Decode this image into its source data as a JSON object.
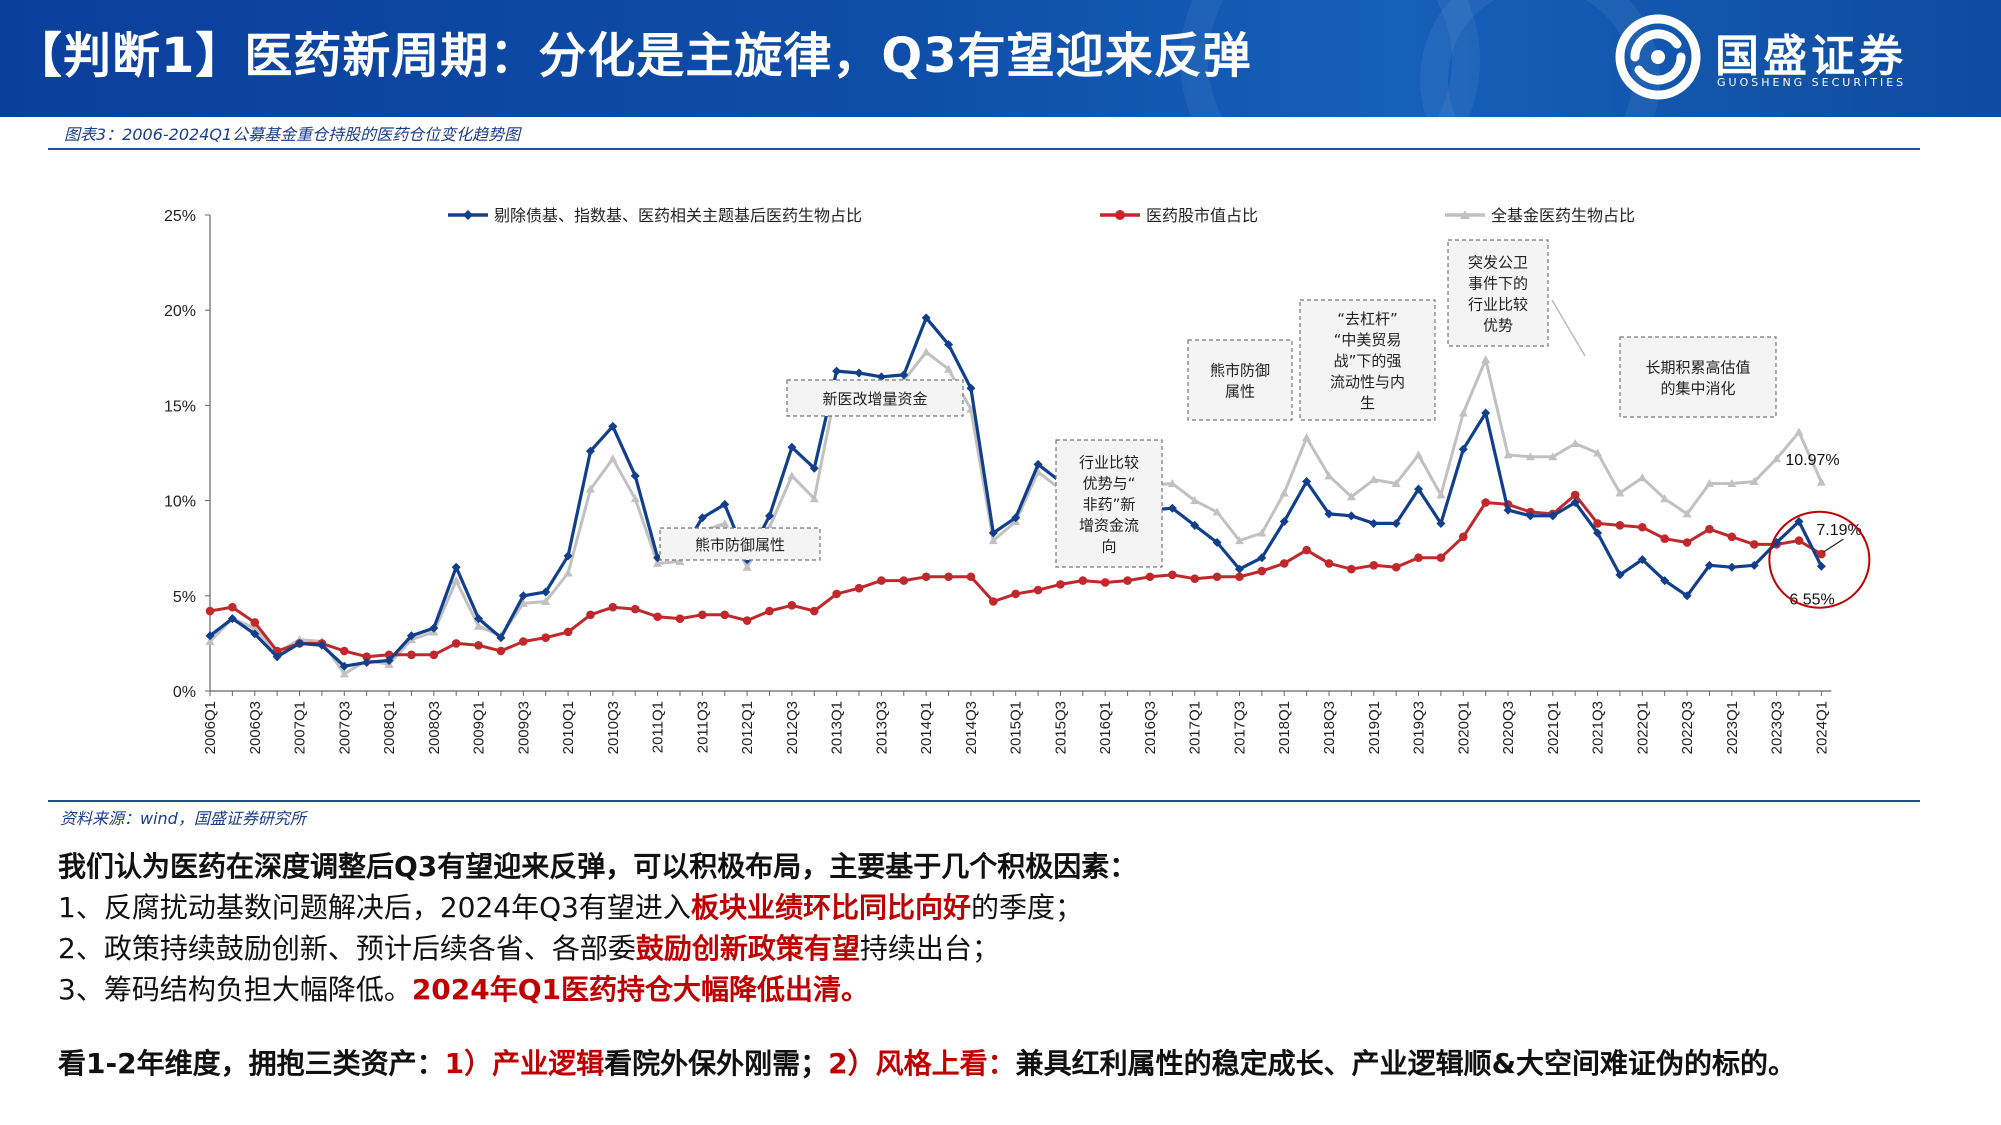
{
  "header": {
    "title": "【判断1】医药新周期：分化是主旋律，Q3有望迎来反弹",
    "logo_name": "国盛证券",
    "logo_sub": "GUOSHENG SECURITIES"
  },
  "figure": {
    "caption": "图表3：2006-2024Q1公募基金重仓持股的医药仓位变化趋势图",
    "source": "资料来源：wind，国盛证券研究所"
  },
  "chart_data": {
    "type": "line",
    "categories": [
      "2006Q1",
      "2006Q2",
      "2006Q3",
      "2006Q4",
      "2007Q1",
      "2007Q2",
      "2007Q3",
      "2007Q4",
      "2008Q1",
      "2008Q2",
      "2008Q3",
      "2008Q4",
      "2009Q1",
      "2009Q2",
      "2009Q3",
      "2009Q4",
      "2010Q1",
      "2010Q2",
      "2010Q3",
      "2010Q4",
      "2011Q1",
      "2011Q2",
      "2011Q3",
      "2011Q4",
      "2012Q1",
      "2012Q2",
      "2012Q3",
      "2012Q4",
      "2013Q1",
      "2013Q2",
      "2013Q3",
      "2013Q4",
      "2014Q1",
      "2014Q2",
      "2014Q3",
      "2014Q4",
      "2015Q1",
      "2015Q2",
      "2015Q3",
      "2015Q4",
      "2016Q1",
      "2016Q2",
      "2016Q3",
      "2016Q4",
      "2017Q1",
      "2017Q2",
      "2017Q3",
      "2017Q4",
      "2018Q1",
      "2018Q2",
      "2018Q3",
      "2018Q4",
      "2019Q1",
      "2019Q2",
      "2019Q3",
      "2019Q4",
      "2020Q1",
      "2020Q2",
      "2020Q3",
      "2020Q4",
      "2021Q1",
      "2021Q2",
      "2021Q3",
      "2021Q4",
      "2022Q1",
      "2022Q2",
      "2022Q3",
      "2022Q4",
      "2023Q1",
      "2023Q2",
      "2023Q3",
      "2023Q4",
      "2024Q1"
    ],
    "tick_labels": [
      "2006Q1",
      "2006Q3",
      "2007Q1",
      "2007Q3",
      "2008Q1",
      "2008Q3",
      "2009Q1",
      "2009Q3",
      "2010Q1",
      "2010Q3",
      "2011Q1",
      "2011Q3",
      "2012Q1",
      "2012Q3",
      "2013Q1",
      "2013Q3",
      "2014Q1",
      "2014Q3",
      "2015Q1",
      "2015Q3",
      "2016Q1",
      "2016Q3",
      "2017Q1",
      "2017Q3",
      "2018Q1",
      "2018Q3",
      "2019Q1",
      "2019Q3",
      "2020Q1",
      "2020Q3",
      "2021Q1",
      "2021Q3",
      "2022Q1",
      "2022Q3",
      "2023Q1",
      "2023Q3",
      "2024Q1"
    ],
    "y_ticks": [
      "0%",
      "5%",
      "10%",
      "15%",
      "20%",
      "25%"
    ],
    "ylim": [
      0,
      25
    ],
    "legend_position": "top",
    "series": [
      {
        "name": "剔除债基、指数基、医药相关主题基后医药生物占比",
        "color": "#123f8c",
        "marker": "diamond",
        "values": [
          2.9,
          3.8,
          3.0,
          1.8,
          2.5,
          2.4,
          1.3,
          1.5,
          1.6,
          2.9,
          3.3,
          6.5,
          3.8,
          2.8,
          5.0,
          5.2,
          7.1,
          12.6,
          13.9,
          11.3,
          7.0,
          7.2,
          9.1,
          9.8,
          6.9,
          9.2,
          12.8,
          11.7,
          16.8,
          16.7,
          16.5,
          16.6,
          19.6,
          18.2,
          15.9,
          8.3,
          9.1,
          11.9,
          11.0,
          10.2,
          9.9,
          9.5,
          9.5,
          9.6,
          8.7,
          7.8,
          6.4,
          7.0,
          8.9,
          11.0,
          9.3,
          9.2,
          8.8,
          8.8,
          10.6,
          8.8,
          12.7,
          14.6,
          9.5,
          9.2,
          9.2,
          9.9,
          8.3,
          6.1,
          6.9,
          5.8,
          5.0,
          6.6,
          6.5,
          6.6,
          7.8,
          8.9,
          6.55
        ]
      },
      {
        "name": "医药股市值占比",
        "color": "#c0282c",
        "marker": "circle",
        "values": [
          4.2,
          4.4,
          3.6,
          2.1,
          2.5,
          2.5,
          2.1,
          1.8,
          1.9,
          1.9,
          1.9,
          2.5,
          2.4,
          2.1,
          2.6,
          2.8,
          3.1,
          4.0,
          4.4,
          4.3,
          3.9,
          3.8,
          4.0,
          4.0,
          3.7,
          4.2,
          4.5,
          4.2,
          5.1,
          5.4,
          5.8,
          5.8,
          6.0,
          6.0,
          6.0,
          4.7,
          5.1,
          5.3,
          5.6,
          5.8,
          5.7,
          5.8,
          6.0,
          6.1,
          5.9,
          6.0,
          6.0,
          6.3,
          6.7,
          7.4,
          6.7,
          6.4,
          6.6,
          6.5,
          7.0,
          7.0,
          8.1,
          9.9,
          9.8,
          9.4,
          9.3,
          10.3,
          8.8,
          8.7,
          8.6,
          8.0,
          7.8,
          8.5,
          8.1,
          7.7,
          7.7,
          7.9,
          7.19
        ]
      },
      {
        "name": "全基金医药生物占比",
        "color": "#c1c1c1",
        "marker": "triangle",
        "values": [
          2.6,
          3.8,
          3.3,
          2.0,
          2.7,
          2.6,
          0.9,
          1.6,
          1.4,
          2.7,
          3.1,
          5.8,
          3.4,
          2.9,
          4.6,
          4.7,
          6.2,
          10.6,
          12.2,
          10.1,
          6.7,
          6.8,
          8.4,
          8.8,
          6.5,
          8.6,
          11.3,
          10.1,
          16.0,
          16.2,
          16.2,
          16.3,
          17.8,
          16.9,
          14.8,
          7.9,
          8.9,
          11.5,
          10.6,
          10.1,
          10.2,
          10.4,
          10.8,
          10.9,
          10.0,
          9.4,
          7.9,
          8.3,
          10.4,
          13.3,
          11.3,
          10.2,
          11.1,
          10.9,
          12.4,
          10.3,
          14.6,
          17.4,
          12.4,
          12.3,
          12.3,
          13.0,
          12.5,
          10.4,
          11.2,
          10.1,
          9.3,
          10.9,
          10.9,
          11.0,
          12.2,
          13.6,
          10.97
        ]
      }
    ],
    "value_labels": [
      "10.97%",
      "7.19%",
      "6.55%"
    ],
    "annotations": [
      "熊市防御属性",
      "新医改增量资金",
      "行业比较优势与“非药”新增资金流向",
      "熊市防御属性",
      "“去杠杆”“中美贸易战”下的强流动性与内生",
      "突发公卫事件下的行业比较优势",
      "长期积累高估值的集中消化"
    ]
  },
  "body": {
    "intro": "我们认为医药在深度调整后Q3有望迎来反弹，可以积极布局，主要基于几个积极因素：",
    "p1_a": "1、反腐扰动基数问题解决后，2024年Q3有望进入",
    "p1_b": "板块业绩环比同比向好",
    "p1_c": "的季度；",
    "p2_a": "2、政策持续鼓励创新、预计后续各省、各部委",
    "p2_b": "鼓励创新政策有望",
    "p2_c": "持续出台；",
    "p3_a": "3、筹码结构负担大幅降低。",
    "p3_b": "2024年Q1医药持仓大幅降低出清。",
    "v_a": "看1-2年维度，拥抱三类资产：",
    "v_b": "1）产业逻辑",
    "v_c": "看院外保外刚需；",
    "v_d": "2）风格上看：",
    "v_e": "兼具红利属性的稳定成长、产业逻辑顺&大空间难证伪的标的。"
  }
}
